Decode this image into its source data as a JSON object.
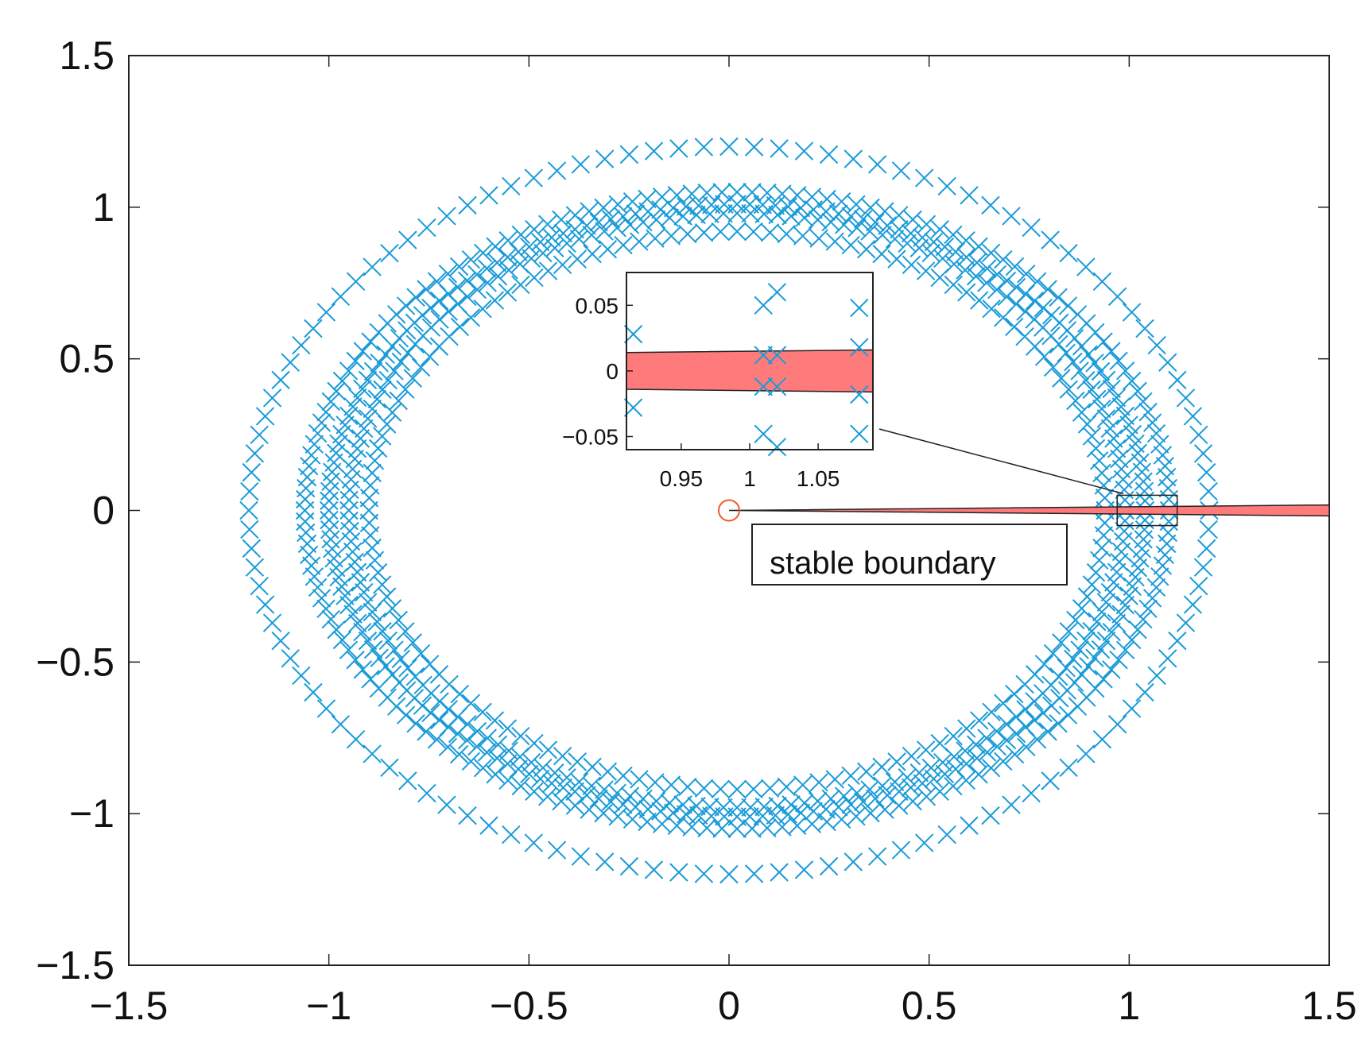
{
  "chart_data": {
    "type": "scatter",
    "main": {
      "xlim": [
        -1.5,
        1.5
      ],
      "ylim": [
        -1.5,
        1.5
      ],
      "xticks": [
        "−1.5",
        "−1",
        "−0.5",
        "0",
        "0.5",
        "1",
        "1.5"
      ],
      "yticks": [
        "1.5",
        "1",
        "0.5",
        "0",
        "−0.5",
        "−1",
        "−1.5"
      ],
      "xtick_values": [
        -1.5,
        -1,
        -0.5,
        0,
        0.5,
        1,
        1.5
      ],
      "ytick_values": [
        1.5,
        1,
        0.5,
        0,
        -0.5,
        -1,
        -1.5
      ],
      "grid": false
    },
    "marker": "x",
    "marker_color": "#1a9bd7",
    "rings": [
      {
        "rx": 1.2,
        "ry": 1.2,
        "cx": 0.0,
        "points": 120
      },
      {
        "rx": 1.08,
        "ry": 1.05,
        "cx": 0.02,
        "points": 180
      },
      {
        "rx": 1.02,
        "ry": 1.01,
        "cx": 0.02,
        "points": 200
      },
      {
        "rx": 0.97,
        "ry": 0.98,
        "cx": 0.02,
        "points": 180
      },
      {
        "rx": 0.92,
        "ry": 0.92,
        "cx": 0.02,
        "points": 140
      }
    ],
    "origin_marker": {
      "x": 0,
      "y": 0,
      "color": "#f05a28"
    },
    "stable_region": {
      "x_from": 0,
      "x_to": 1.5,
      "half_width_start": 0.0,
      "half_width_end": 0.018,
      "color": "#ff7b7b"
    },
    "zoom_box": {
      "x": [
        0.97,
        1.12
      ],
      "y": [
        -0.05,
        0.05
      ]
    },
    "inset": {
      "xlim": [
        0.91,
        1.09
      ],
      "ylim": [
        -0.06,
        0.075
      ],
      "xticks": [
        "0.95",
        "1",
        "1.05"
      ],
      "yticks": [
        "0.05",
        "0",
        "−0.05"
      ],
      "xtick_values": [
        0.95,
        1.0,
        1.05
      ],
      "ytick_values": [
        0.05,
        0,
        -0.05
      ],
      "points": [
        [
          0.915,
          0.028
        ],
        [
          0.915,
          -0.028
        ],
        [
          1.01,
          0.05
        ],
        [
          1.02,
          0.06
        ],
        [
          1.01,
          0.012
        ],
        [
          1.02,
          0.012
        ],
        [
          1.01,
          -0.012
        ],
        [
          1.02,
          -0.012
        ],
        [
          1.01,
          -0.048
        ],
        [
          1.02,
          -0.058
        ],
        [
          1.08,
          0.048
        ],
        [
          1.08,
          0.018
        ],
        [
          1.08,
          -0.018
        ],
        [
          1.08,
          -0.048
        ]
      ],
      "band": {
        "y_top_left": 0.014,
        "y_top_right": 0.016,
        "y_bot_left": -0.014,
        "y_bot_right": -0.016
      }
    },
    "annotation": "stable boundary"
  }
}
